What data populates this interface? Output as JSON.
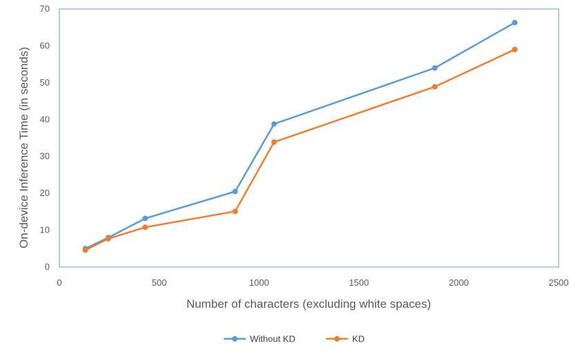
{
  "chart_data": {
    "type": "line",
    "title": "",
    "xlabel": "Number of characters (excluding white spaces)",
    "ylabel": "On-device Inference Time (in seconds)",
    "xlim": [
      0,
      2500
    ],
    "ylim": [
      0,
      70
    ],
    "xticks": [
      "0",
      "500",
      "1000",
      "1500",
      "2000",
      "2500"
    ],
    "yticks": [
      "0",
      "10",
      "20",
      "30",
      "40",
      "50",
      "60",
      "70"
    ],
    "grid": false,
    "legend_position": "bottom",
    "series": [
      {
        "name": "Without KD",
        "color": "#5B9BD5",
        "x": [
          130,
          245,
          430,
          880,
          1075,
          1880,
          2280
        ],
        "y": [
          5,
          8,
          13.2,
          20.5,
          38.8,
          54,
          66.3
        ]
      },
      {
        "name": "KD",
        "color": "#ED7D31",
        "x": [
          130,
          245,
          430,
          880,
          1075,
          1880,
          2280
        ],
        "y": [
          4.6,
          7.7,
          10.8,
          15.1,
          33.9,
          48.9,
          59
        ]
      }
    ]
  }
}
